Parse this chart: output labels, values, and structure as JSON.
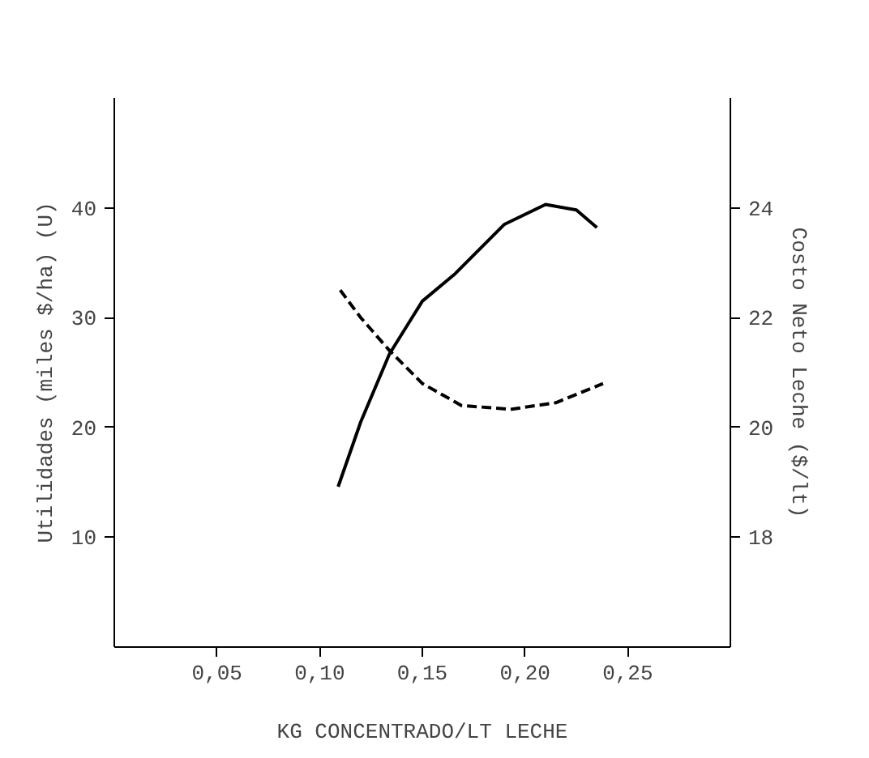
{
  "chart_data": {
    "type": "line",
    "xlabel": "KG CONCENTRADO/LT LECHE",
    "ylabel": "Utilidades (miles $/ha) (U)",
    "y2label": "Costo Neto Leche ($/lt)",
    "xlim": [
      0,
      0.3
    ],
    "xticks": [
      {
        "value": 0.05,
        "label": "0,05"
      },
      {
        "value": 0.1,
        "label": "0,10"
      },
      {
        "value": 0.15,
        "label": "0,15"
      },
      {
        "value": 0.2,
        "label": "0,20"
      },
      {
        "value": 0.25,
        "label": "0,25"
      }
    ],
    "ylim": [
      0,
      50
    ],
    "yticks": [
      10,
      20,
      30,
      40
    ],
    "y2lim": [
      16,
      26
    ],
    "y2ticks": [
      18,
      20,
      22,
      24
    ],
    "grid": false,
    "series": [
      {
        "color": "#000000",
        "line_style": "solid",
        "x": [
          0.109,
          0.12,
          0.134,
          0.15,
          0.166,
          0.19,
          0.21,
          0.225,
          0.235
        ],
        "values": [
          14.6,
          20.5,
          26.7,
          31.5,
          34,
          38.5,
          40.3,
          39.8,
          38.2
        ]
      },
      {
        "color": "#000000",
        "line_style": "dashed",
        "axis": "y2",
        "x": [
          0.11,
          0.12,
          0.134,
          0.15,
          0.169,
          0.193,
          0.215,
          0.238
        ],
        "values": [
          22.5,
          22,
          21.4,
          20.8,
          20.4,
          20.33,
          20.45,
          20.8
        ]
      }
    ]
  }
}
